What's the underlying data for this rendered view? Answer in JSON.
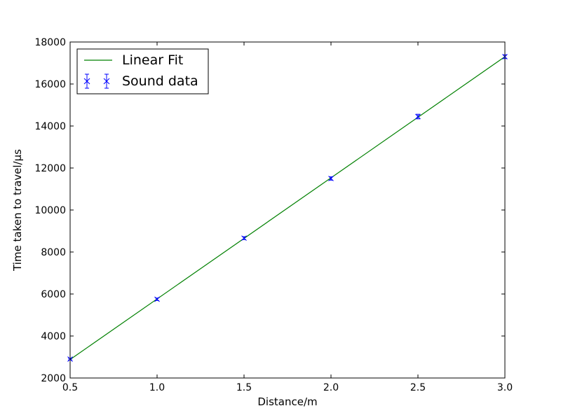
{
  "chart_data": {
    "type": "scatter",
    "title": "",
    "xlabel": "Distance/m",
    "ylabel": "Time taken to travel/µs",
    "xlim": [
      0.5,
      3.0
    ],
    "ylim": [
      2000,
      18000
    ],
    "xticks": [
      0.5,
      1.0,
      1.5,
      2.0,
      2.5,
      3.0
    ],
    "xtick_labels": [
      "0.5",
      "1.0",
      "1.5",
      "2.0",
      "2.5",
      "3.0"
    ],
    "yticks": [
      2000,
      4000,
      6000,
      8000,
      10000,
      12000,
      14000,
      16000,
      18000
    ],
    "ytick_labels": [
      "2000",
      "4000",
      "6000",
      "8000",
      "10000",
      "12000",
      "14000",
      "16000",
      "18000"
    ],
    "grid": false,
    "legend_position": "top-left",
    "series": [
      {
        "name": "Linear Fit",
        "kind": "line",
        "color": "#008000",
        "x": [
          0.5,
          3.0
        ],
        "y": [
          2880,
          17300
        ]
      },
      {
        "name": "Sound data",
        "kind": "errorbar",
        "marker": "x",
        "color": "#0000ff",
        "x": [
          0.5,
          1.0,
          1.5,
          2.0,
          2.5,
          3.0
        ],
        "y": [
          2900,
          5750,
          8660,
          11500,
          14450,
          17300
        ],
        "yerr": [
          40,
          60,
          70,
          80,
          110,
          90
        ]
      }
    ]
  }
}
